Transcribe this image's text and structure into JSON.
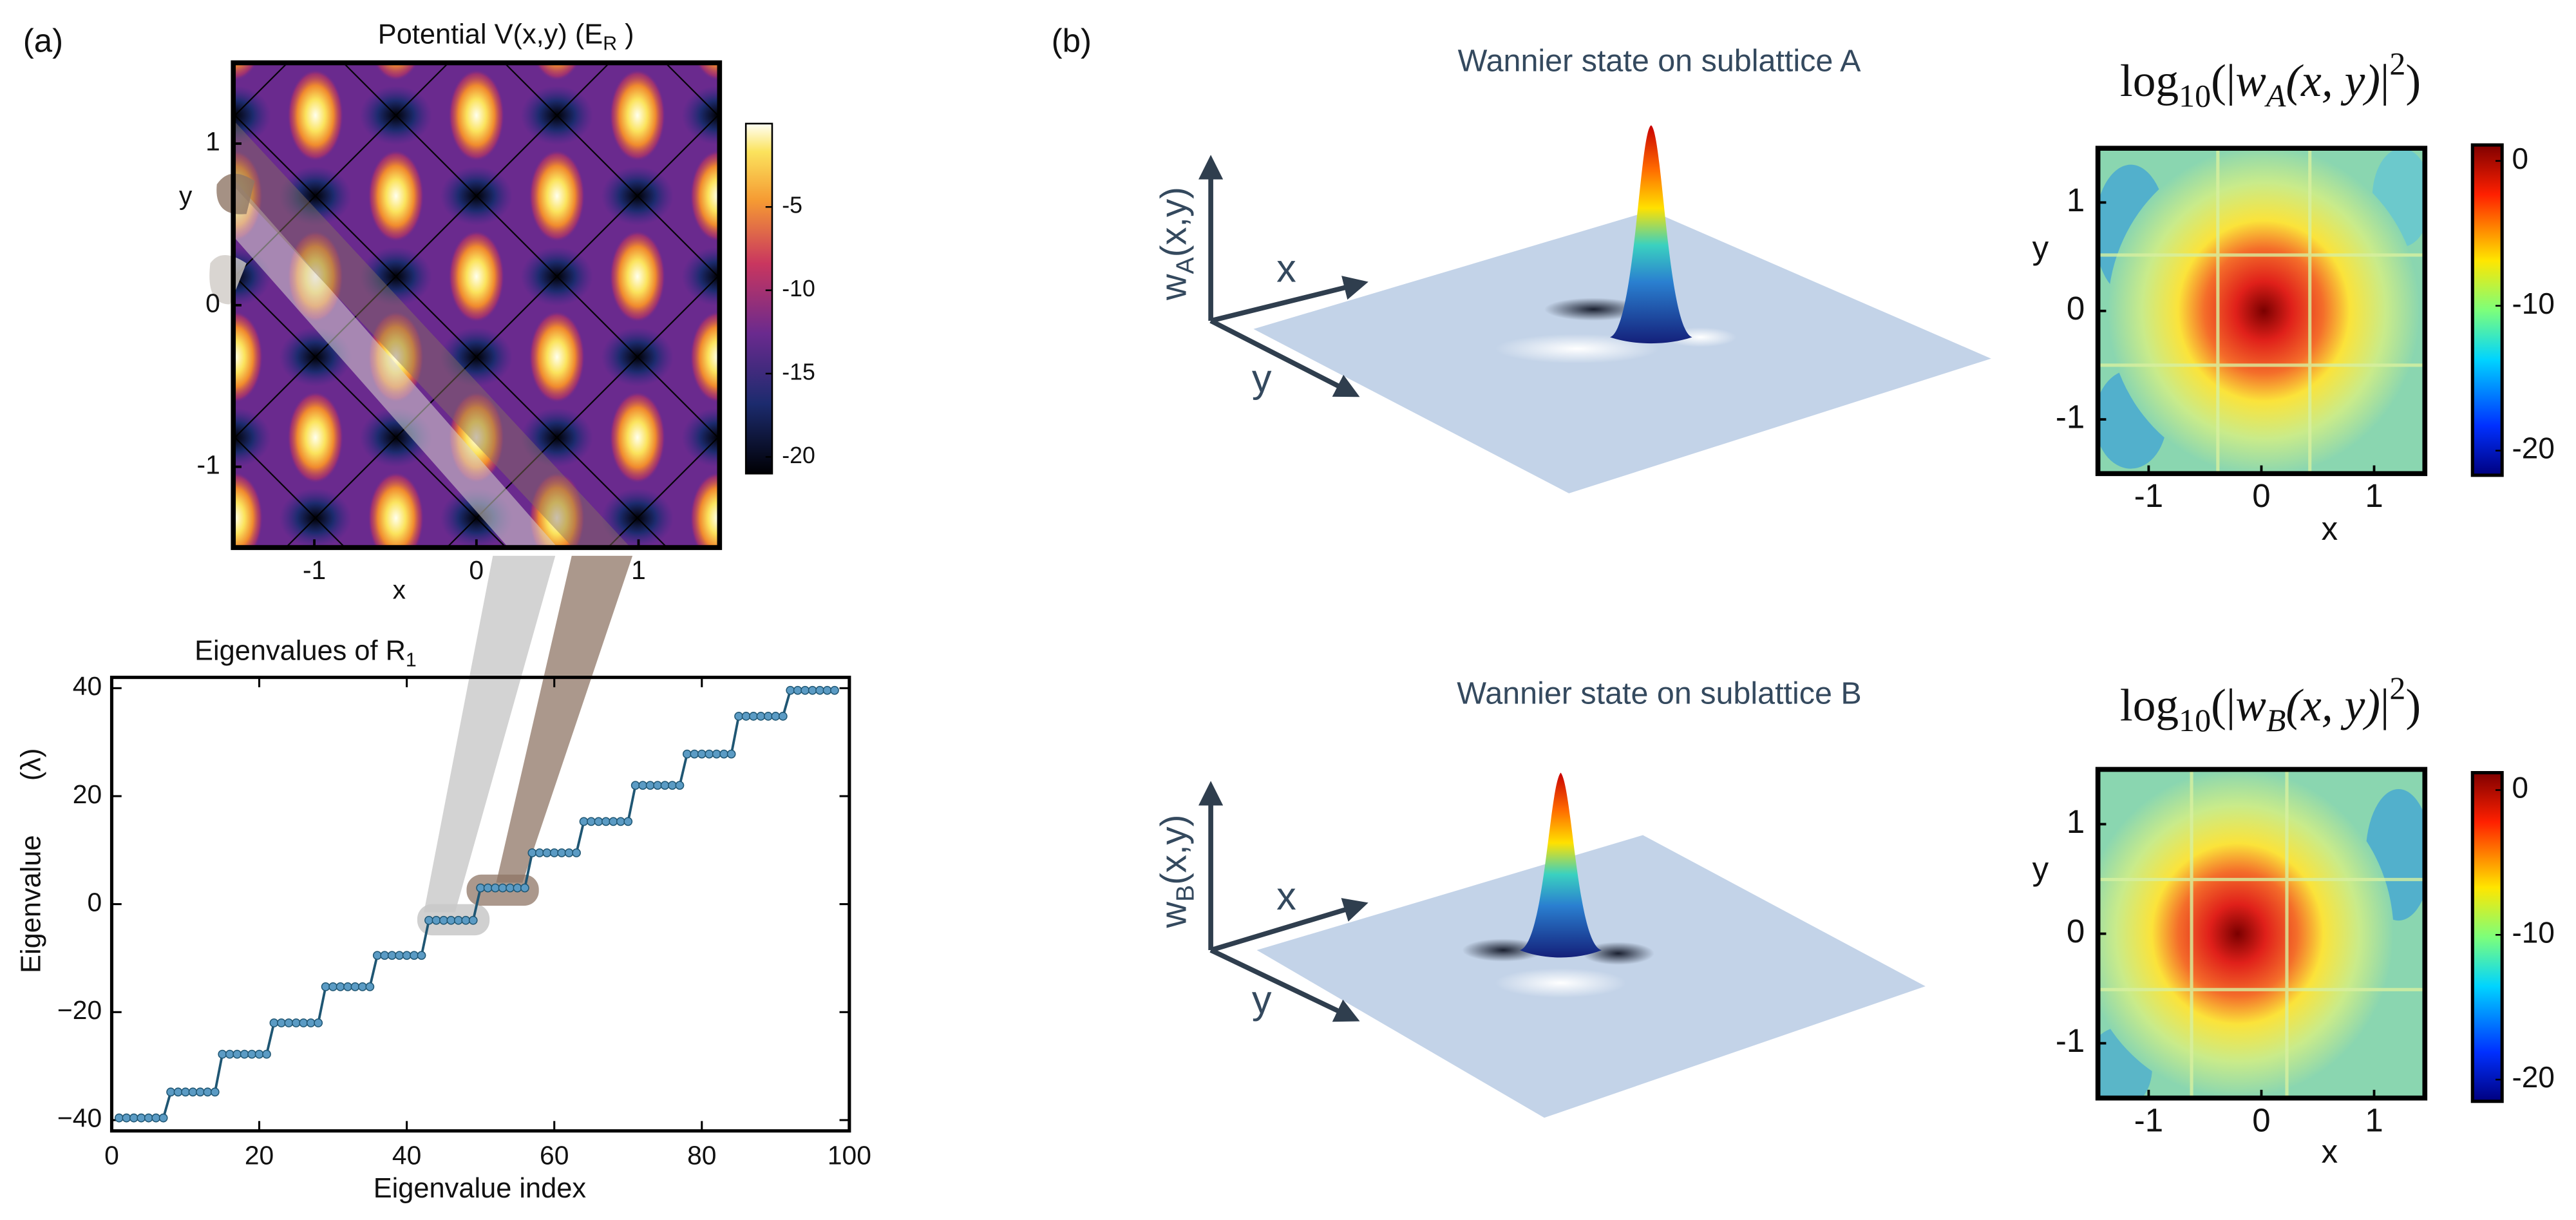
{
  "panel_labels": [
    "(a)",
    "(b)"
  ],
  "chart_data": [
    {
      "type": "heatmap",
      "title": [
        {
          "text": "Potential V(x,y)  (E"
        },
        {
          "text": "R",
          "shift": "sub"
        },
        {
          "text": " )"
        }
      ],
      "xlabel": "x",
      "ylabel": "y",
      "xlim": [
        -1.5,
        1.5
      ],
      "ylim": [
        -1.5,
        1.5
      ],
      "xticks": [
        -1,
        0,
        1
      ],
      "yticks": [
        -1,
        0,
        1
      ],
      "clim": [
        -21,
        0
      ],
      "cticks": [
        -5,
        -10,
        -15,
        -20
      ],
      "colormap": "inferno"
    },
    {
      "type": "line",
      "title": [
        {
          "text": "Eigenvalues of R"
        },
        {
          "text": "1",
          "shift": "sub"
        }
      ],
      "xlabel": "Eigenvalue index",
      "ylabel": "Eigenvalue",
      "ylabel_unit": "(λ)",
      "xlim": [
        0,
        100
      ],
      "ylim": [
        -42,
        42
      ],
      "xticks": [
        0,
        20,
        40,
        60,
        80,
        100
      ],
      "yticks": [
        {
          "value": -40,
          "label": "−40"
        },
        {
          "value": -20,
          "label": "−20"
        },
        0,
        20,
        40
      ],
      "color": "#1f5673",
      "marker_color": "#5b9bc4",
      "x": [
        1,
        2,
        3,
        4,
        5,
        6,
        7,
        8,
        9,
        10,
        11,
        12,
        13,
        14,
        15,
        16,
        17,
        18,
        19,
        20,
        21,
        22,
        23,
        24,
        25,
        26,
        27,
        28,
        29,
        30,
        31,
        32,
        33,
        34,
        35,
        36,
        37,
        38,
        39,
        40,
        41,
        42,
        43,
        44,
        45,
        46,
        47,
        48,
        49,
        50,
        51,
        52,
        53,
        54,
        55,
        56,
        57,
        58,
        59,
        60,
        61,
        62,
        63,
        64,
        65,
        66,
        67,
        68,
        69,
        70,
        71,
        72,
        73,
        74,
        75,
        76,
        77,
        78,
        79,
        80,
        81,
        82,
        83,
        84,
        85,
        86,
        87,
        88,
        89,
        90,
        91,
        92,
        93,
        94,
        95,
        96,
        97,
        98
      ],
      "values": [
        -39.6,
        -39.6,
        -39.6,
        -39.6,
        -39.6,
        -39.6,
        -39.6,
        -34.8,
        -34.8,
        -34.8,
        -34.8,
        -34.8,
        -34.8,
        -34.8,
        -27.8,
        -27.8,
        -27.8,
        -27.8,
        -27.8,
        -27.8,
        -27.8,
        -22,
        -22,
        -22,
        -22,
        -22,
        -22,
        -22,
        -15.3,
        -15.3,
        -15.3,
        -15.3,
        -15.3,
        -15.3,
        -15.3,
        -9.5,
        -9.5,
        -9.5,
        -9.5,
        -9.5,
        -9.5,
        -9.5,
        -3,
        -3,
        -3,
        -3,
        -3,
        -3,
        -3,
        3,
        3,
        3,
        3,
        3,
        3,
        3,
        9.5,
        9.5,
        9.5,
        9.5,
        9.5,
        9.5,
        9.5,
        15.3,
        15.3,
        15.3,
        15.3,
        15.3,
        15.3,
        15.3,
        22,
        22,
        22,
        22,
        22,
        22,
        22,
        27.8,
        27.8,
        27.8,
        27.8,
        27.8,
        27.8,
        27.8,
        34.8,
        34.8,
        34.8,
        34.8,
        34.8,
        34.8,
        34.8,
        39.6,
        39.6,
        39.6,
        39.6,
        39.6,
        39.6,
        39.6
      ]
    },
    {
      "type": "surface",
      "title": "Wannier state on sublattice A",
      "zlabel": [
        {
          "text": "w"
        },
        {
          "text": "A",
          "shift": "sub"
        },
        {
          "text": "(x,y)"
        }
      ],
      "xlabel": "x",
      "ylabel": "y"
    },
    {
      "type": "surface",
      "title": "Wannier state on sublattice B",
      "zlabel": [
        {
          "text": "w"
        },
        {
          "text": "B",
          "shift": "sub"
        },
        {
          "text": "(x,y)"
        }
      ],
      "xlabel": "x",
      "ylabel": "y"
    },
    {
      "type": "heatmap",
      "title": [
        {
          "text": "log"
        },
        {
          "text": "10",
          "shift": "sub"
        },
        {
          "text": "(|"
        },
        {
          "text": "w",
          "style": "italic"
        },
        {
          "text": "A",
          "shift": "sub",
          "style": "italic"
        },
        {
          "text": "(x, y)",
          "style": "italic"
        },
        {
          "text": "|"
        },
        {
          "text": "2",
          "shift": "sup"
        },
        {
          "text": ")"
        }
      ],
      "xlabel": "x",
      "ylabel": "y",
      "xlim": [
        -1.45,
        1.45
      ],
      "ylim": [
        -1.5,
        1.5
      ],
      "xticks": [
        -1,
        0,
        1
      ],
      "yticks": [
        -1,
        0,
        1
      ],
      "clim": [
        -21.7,
        1.1
      ],
      "cticks": [
        0,
        -10,
        -20
      ],
      "colormap": "jet"
    },
    {
      "type": "heatmap",
      "title": [
        {
          "text": "log"
        },
        {
          "text": "10",
          "shift": "sub"
        },
        {
          "text": "(|"
        },
        {
          "text": "w",
          "style": "italic"
        },
        {
          "text": "B",
          "shift": "sub",
          "style": "italic"
        },
        {
          "text": "(x, y)",
          "style": "italic"
        },
        {
          "text": "|"
        },
        {
          "text": "2",
          "shift": "sup"
        },
        {
          "text": ")"
        }
      ],
      "xlabel": "x",
      "ylabel": "y",
      "xlim": [
        -1.45,
        1.45
      ],
      "ylim": [
        -1.5,
        1.5
      ],
      "xticks": [
        -1,
        0,
        1
      ],
      "yticks": [
        -1,
        0,
        1
      ],
      "clim": [
        -21.5,
        1.2
      ],
      "cticks": [
        0,
        -10,
        -20
      ],
      "colormap": "jet"
    }
  ]
}
